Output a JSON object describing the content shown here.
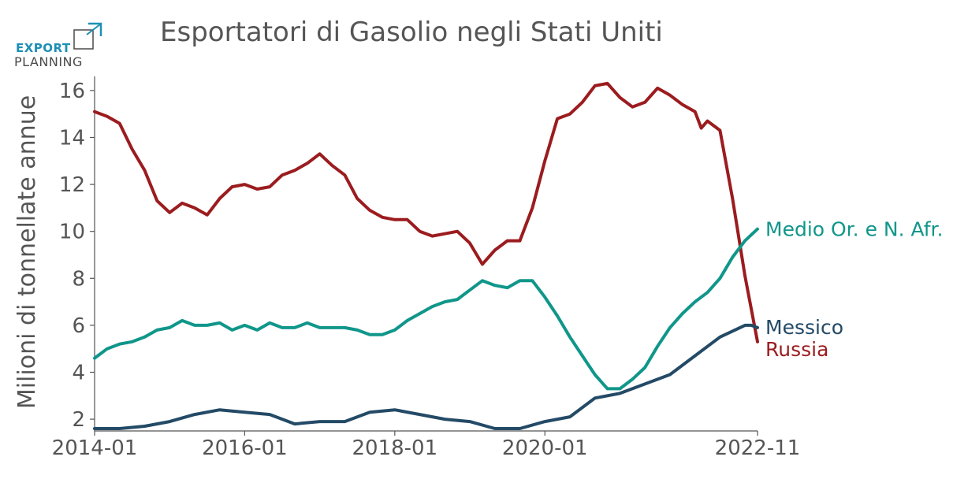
{
  "logo": {
    "top": "EXPORT",
    "bottom": "PLANNING",
    "colors": {
      "accent": "#1d8fb5",
      "text": "#4a4a4a"
    }
  },
  "chart_data": {
    "type": "line",
    "title": "Esportatori di Gasolio negli Stati Uniti",
    "xlabel": "",
    "ylabel": "Milioni di tonnellate annue",
    "x_range": [
      "2014-01",
      "2022-11"
    ],
    "ylim": [
      1.5,
      16.6
    ],
    "x_ticks": [
      "2014-01",
      "2016-01",
      "2018-01",
      "2020-01",
      "2022-11"
    ],
    "y_ticks": [
      2,
      4,
      6,
      8,
      10,
      12,
      14,
      16
    ],
    "grid": false,
    "legend": "end-of-line labels",
    "series": [
      {
        "name": "Russia",
        "color": "#9b1c1f",
        "points": [
          [
            "2014-01",
            15.1
          ],
          [
            "2014-03",
            14.9
          ],
          [
            "2014-05",
            14.6
          ],
          [
            "2014-07",
            13.5
          ],
          [
            "2014-09",
            12.6
          ],
          [
            "2014-11",
            11.3
          ],
          [
            "2015-01",
            10.8
          ],
          [
            "2015-03",
            11.2
          ],
          [
            "2015-05",
            11.0
          ],
          [
            "2015-07",
            10.7
          ],
          [
            "2015-09",
            11.4
          ],
          [
            "2015-11",
            11.9
          ],
          [
            "2016-01",
            12.0
          ],
          [
            "2016-03",
            11.8
          ],
          [
            "2016-05",
            11.9
          ],
          [
            "2016-07",
            12.4
          ],
          [
            "2016-09",
            12.6
          ],
          [
            "2016-11",
            12.9
          ],
          [
            "2017-01",
            13.3
          ],
          [
            "2017-03",
            12.8
          ],
          [
            "2017-05",
            12.4
          ],
          [
            "2017-07",
            11.4
          ],
          [
            "2017-09",
            10.9
          ],
          [
            "2017-11",
            10.6
          ],
          [
            "2018-01",
            10.5
          ],
          [
            "2018-03",
            10.5
          ],
          [
            "2018-05",
            10.0
          ],
          [
            "2018-07",
            9.8
          ],
          [
            "2018-09",
            9.9
          ],
          [
            "2018-11",
            10.0
          ],
          [
            "2019-01",
            9.5
          ],
          [
            "2019-03",
            8.6
          ],
          [
            "2019-05",
            9.2
          ],
          [
            "2019-07",
            9.6
          ],
          [
            "2019-09",
            9.6
          ],
          [
            "2019-11",
            11.0
          ],
          [
            "2020-01",
            13.0
          ],
          [
            "2020-03",
            14.8
          ],
          [
            "2020-05",
            15.0
          ],
          [
            "2020-07",
            15.5
          ],
          [
            "2020-09",
            16.2
          ],
          [
            "2020-11",
            16.3
          ],
          [
            "2021-01",
            15.7
          ],
          [
            "2021-03",
            15.3
          ],
          [
            "2021-05",
            15.5
          ],
          [
            "2021-07",
            16.1
          ],
          [
            "2021-09",
            15.8
          ],
          [
            "2021-11",
            15.4
          ],
          [
            "2022-01",
            15.1
          ],
          [
            "2022-02",
            14.4
          ],
          [
            "2022-03",
            14.7
          ],
          [
            "2022-05",
            14.3
          ],
          [
            "2022-07",
            11.4
          ],
          [
            "2022-09",
            8.1
          ],
          [
            "2022-11",
            5.3
          ]
        ]
      },
      {
        "name": "Medio Or. e N. Afr.",
        "color": "#10968a",
        "points": [
          [
            "2014-01",
            4.6
          ],
          [
            "2014-03",
            5.0
          ],
          [
            "2014-05",
            5.2
          ],
          [
            "2014-07",
            5.3
          ],
          [
            "2014-09",
            5.5
          ],
          [
            "2014-11",
            5.8
          ],
          [
            "2015-01",
            5.9
          ],
          [
            "2015-03",
            6.2
          ],
          [
            "2015-05",
            6.0
          ],
          [
            "2015-07",
            6.0
          ],
          [
            "2015-09",
            6.1
          ],
          [
            "2015-11",
            5.8
          ],
          [
            "2016-01",
            6.0
          ],
          [
            "2016-03",
            5.8
          ],
          [
            "2016-05",
            6.1
          ],
          [
            "2016-07",
            5.9
          ],
          [
            "2016-09",
            5.9
          ],
          [
            "2016-11",
            6.1
          ],
          [
            "2017-01",
            5.9
          ],
          [
            "2017-03",
            5.9
          ],
          [
            "2017-05",
            5.9
          ],
          [
            "2017-07",
            5.8
          ],
          [
            "2017-09",
            5.6
          ],
          [
            "2017-11",
            5.6
          ],
          [
            "2018-01",
            5.8
          ],
          [
            "2018-03",
            6.2
          ],
          [
            "2018-05",
            6.5
          ],
          [
            "2018-07",
            6.8
          ],
          [
            "2018-09",
            7.0
          ],
          [
            "2018-11",
            7.1
          ],
          [
            "2019-01",
            7.5
          ],
          [
            "2019-03",
            7.9
          ],
          [
            "2019-05",
            7.7
          ],
          [
            "2019-07",
            7.6
          ],
          [
            "2019-09",
            7.9
          ],
          [
            "2019-11",
            7.9
          ],
          [
            "2020-01",
            7.2
          ],
          [
            "2020-03",
            6.4
          ],
          [
            "2020-05",
            5.5
          ],
          [
            "2020-07",
            4.7
          ],
          [
            "2020-09",
            3.9
          ],
          [
            "2020-11",
            3.3
          ],
          [
            "2021-01",
            3.3
          ],
          [
            "2021-03",
            3.7
          ],
          [
            "2021-05",
            4.2
          ],
          [
            "2021-07",
            5.1
          ],
          [
            "2021-09",
            5.9
          ],
          [
            "2021-11",
            6.5
          ],
          [
            "2022-01",
            7.0
          ],
          [
            "2022-03",
            7.4
          ],
          [
            "2022-05",
            8.0
          ],
          [
            "2022-07",
            8.9
          ],
          [
            "2022-09",
            9.6
          ],
          [
            "2022-11",
            10.1
          ]
        ]
      },
      {
        "name": "Messico",
        "color": "#234a66",
        "points": [
          [
            "2014-01",
            1.6
          ],
          [
            "2014-05",
            1.6
          ],
          [
            "2014-09",
            1.7
          ],
          [
            "2015-01",
            1.9
          ],
          [
            "2015-05",
            2.2
          ],
          [
            "2015-09",
            2.4
          ],
          [
            "2016-01",
            2.3
          ],
          [
            "2016-05",
            2.2
          ],
          [
            "2016-09",
            1.8
          ],
          [
            "2017-01",
            1.9
          ],
          [
            "2017-05",
            1.9
          ],
          [
            "2017-09",
            2.3
          ],
          [
            "2018-01",
            2.4
          ],
          [
            "2018-05",
            2.2
          ],
          [
            "2018-09",
            2.0
          ],
          [
            "2019-01",
            1.9
          ],
          [
            "2019-05",
            1.6
          ],
          [
            "2019-09",
            1.6
          ],
          [
            "2020-01",
            1.9
          ],
          [
            "2020-05",
            2.1
          ],
          [
            "2020-09",
            2.9
          ],
          [
            "2021-01",
            3.1
          ],
          [
            "2021-05",
            3.5
          ],
          [
            "2021-09",
            3.9
          ],
          [
            "2022-01",
            4.7
          ],
          [
            "2022-05",
            5.5
          ],
          [
            "2022-09",
            6.0
          ],
          [
            "2022-10",
            6.0
          ],
          [
            "2022-11",
            5.9
          ]
        ]
      }
    ]
  }
}
